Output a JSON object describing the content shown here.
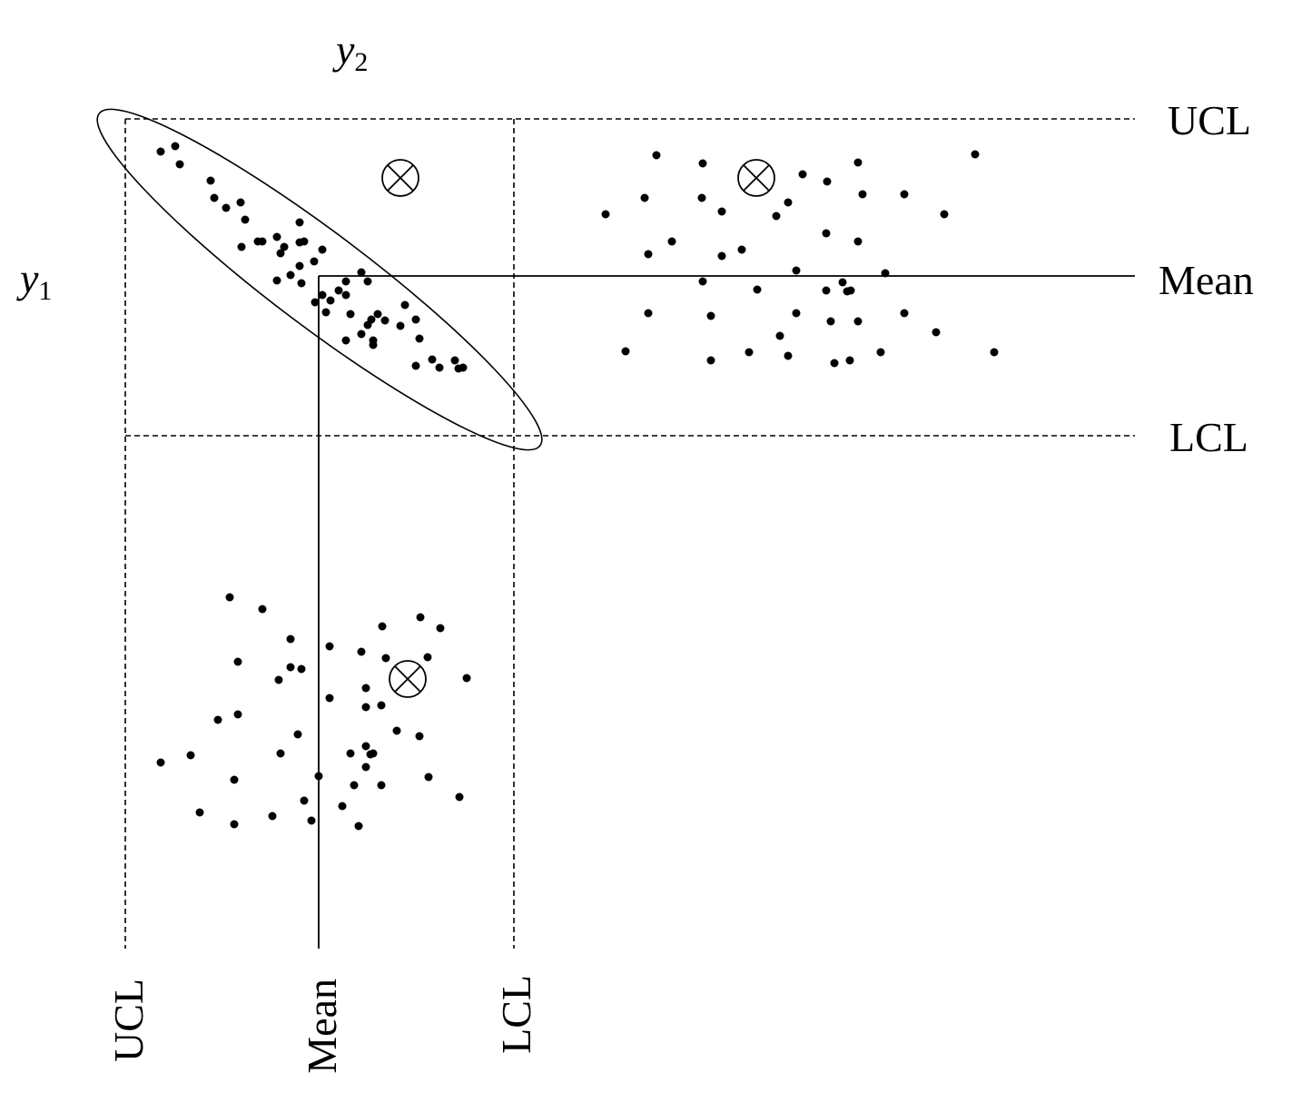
{
  "axes": {
    "y1": {
      "symbol": "y",
      "subscript": "1"
    },
    "y2": {
      "symbol": "y",
      "subscript": "2"
    }
  },
  "right_labels": {
    "ucl": "UCL",
    "mean": "Mean",
    "lcl": "LCL"
  },
  "bottom_labels": {
    "ucl": "UCL",
    "mean": "Mean",
    "lcl": "LCL"
  }
}
